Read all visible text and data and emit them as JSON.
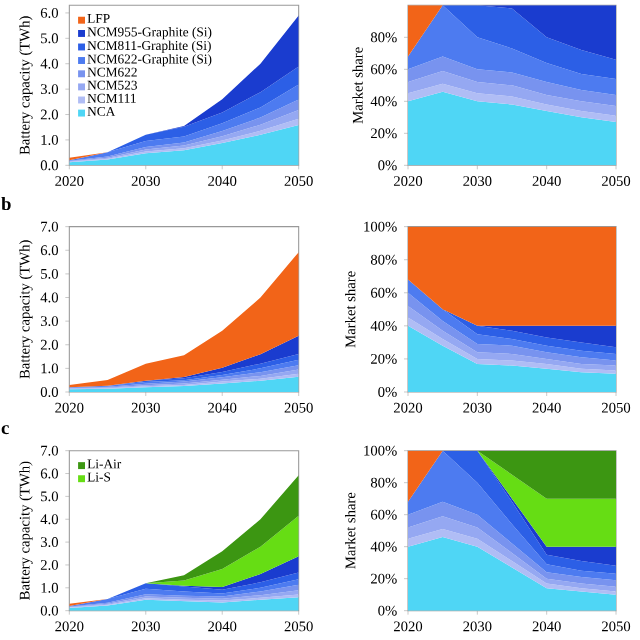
{
  "chart_data": [
    {
      "type": "area",
      "stacked": true,
      "x": [
        2020,
        2025,
        2030,
        2035,
        2040,
        2045,
        2050
      ],
      "xlim": [
        2020,
        2050
      ],
      "xticks": [
        2020,
        2030,
        2040,
        2050
      ],
      "ylim": [
        0,
        6.3
      ],
      "yticks": [
        {
          "value": 0,
          "label": "0.0"
        },
        {
          "value": 1,
          "label": "1.0"
        },
        {
          "value": 2,
          "label": "2.0"
        },
        {
          "value": 3,
          "label": "3.0"
        },
        {
          "value": 4,
          "label": "4.0"
        },
        {
          "value": 5,
          "label": "5.0"
        },
        {
          "value": 6,
          "label": "6.0"
        }
      ],
      "ylabel": "Battery capacity (TWh)",
      "legend": "top left",
      "series": [
        {
          "name": "NCA",
          "color": "#4fd6f5",
          "values": [
            0.12,
            0.23,
            0.48,
            0.59,
            0.88,
            1.2,
            1.59
          ]
        },
        {
          "name": "NCM111",
          "color": "#b0bdf5",
          "values": [
            0.02,
            0.03,
            0.06,
            0.08,
            0.1,
            0.16,
            0.24
          ]
        },
        {
          "name": "NCM523",
          "color": "#95a8f2",
          "values": [
            0.02,
            0.04,
            0.08,
            0.11,
            0.16,
            0.24,
            0.35
          ]
        },
        {
          "name": "NCM622",
          "color": "#7893ef",
          "values": [
            0.02,
            0.05,
            0.1,
            0.12,
            0.21,
            0.28,
            0.41
          ]
        },
        {
          "name": "NCM622-Graphite (Si)",
          "color": "#4d7bf0",
          "values": [
            0.02,
            0.16,
            0.24,
            0.23,
            0.31,
            0.4,
            0.59
          ]
        },
        {
          "name": "NCM811-Graphite (Si)",
          "color": "#2c5fe6",
          "values": [
            null,
            0,
            0.24,
            0.39,
            0.42,
            0.6,
            0.71
          ]
        },
        {
          "name": "NCM955-Graphite (Si)",
          "color": "#1a3ccf",
          "values": [
            null,
            null,
            0,
            0.03,
            0.52,
            1.12,
            2.01
          ]
        },
        {
          "name": "LFP",
          "color": "#f26418",
          "values": [
            0.1,
            0,
            null,
            null,
            null,
            null,
            null
          ]
        }
      ]
    },
    {
      "type": "area",
      "stacked": true,
      "x": [
        2020,
        2025,
        2030,
        2035,
        2040,
        2045,
        2050
      ],
      "xlim": [
        2020,
        2050
      ],
      "xticks": [
        2020,
        2030,
        2040,
        2050
      ],
      "ylim": [
        0,
        100
      ],
      "yticks": [
        {
          "value": 0,
          "label": "0%"
        },
        {
          "value": 20,
          "label": "20%"
        },
        {
          "value": 40,
          "label": "40%"
        },
        {
          "value": 60,
          "label": "60%"
        },
        {
          "value": 80,
          "label": "80%"
        }
      ],
      "ylabel": "Market share",
      "series": [
        {
          "color": "#4fd6f5",
          "values": [
            40,
            46,
            40,
            38,
            34,
            30,
            27
          ]
        },
        {
          "color": "#b0bdf5",
          "values": [
            5,
            5,
            5,
            5,
            4,
            4,
            4
          ]
        },
        {
          "color": "#95a8f2",
          "values": [
            7,
            8,
            7,
            7,
            6,
            6,
            6
          ]
        },
        {
          "color": "#7893ef",
          "values": [
            8,
            9,
            8,
            8,
            8,
            7,
            7
          ]
        },
        {
          "color": "#4d7bf0",
          "values": [
            8,
            32,
            20,
            15,
            12,
            10,
            10
          ]
        },
        {
          "color": "#2c5fe6",
          "values": [
            null,
            0,
            20,
            25,
            16,
            15,
            12
          ]
        },
        {
          "color": "#1a3ccf",
          "values": [
            null,
            null,
            0,
            2,
            20,
            28,
            34
          ]
        },
        {
          "color": "#f26418",
          "values": [
            32,
            0,
            null,
            null,
            null,
            null,
            null
          ]
        }
      ]
    },
    {
      "type": "area",
      "stacked": true,
      "title": "b",
      "x": [
        2020,
        2025,
        2030,
        2035,
        2040,
        2045,
        2050
      ],
      "xlim": [
        2020,
        2050
      ],
      "xticks": [
        2020,
        2030,
        2040,
        2050
      ],
      "ylim": [
        0,
        7
      ],
      "yticks": [
        {
          "value": 0,
          "label": "0.0"
        },
        {
          "value": 1,
          "label": "1.0"
        },
        {
          "value": 2,
          "label": "2.0"
        },
        {
          "value": 3,
          "label": "3.0"
        },
        {
          "value": 4,
          "label": "4.0"
        },
        {
          "value": 5,
          "label": "5.0"
        },
        {
          "value": 6,
          "label": "6.0"
        },
        {
          "value": 7,
          "label": "7.0"
        }
      ],
      "ylabel": "Battery capacity (TWh)",
      "series": [
        {
          "color": "#4fd6f5",
          "values": [
            0.12,
            0.14,
            0.2,
            0.25,
            0.36,
            0.48,
            0.65
          ]
        },
        {
          "color": "#b0bdf5",
          "values": [
            0.02,
            0.02,
            0.04,
            0.05,
            0.08,
            0.08,
            0.12
          ]
        },
        {
          "color": "#95a8f2",
          "values": [
            0.02,
            0.03,
            0.05,
            0.06,
            0.08,
            0.12,
            0.18
          ]
        },
        {
          "color": "#7893ef",
          "values": [
            0.02,
            0.03,
            0.06,
            0.08,
            0.1,
            0.16,
            0.18
          ]
        },
        {
          "color": "#4d7bf0",
          "values": [
            0.02,
            0.04,
            0.07,
            0.06,
            0.1,
            0.16,
            0.24
          ]
        },
        {
          "color": "#2c5fe6",
          "values": [
            null,
            0,
            0.06,
            0.08,
            0.13,
            0.2,
            0.24
          ]
        },
        {
          "color": "#1a3ccf",
          "values": [
            null,
            null,
            0,
            0.05,
            0.18,
            0.4,
            0.77
          ]
        },
        {
          "color": "#f26418",
          "values": [
            0.1,
            0.25,
            0.72,
            0.93,
            1.56,
            2.4,
            3.54
          ]
        }
      ]
    },
    {
      "type": "area",
      "stacked": true,
      "x": [
        2020,
        2025,
        2030,
        2035,
        2040,
        2045,
        2050
      ],
      "xlim": [
        2020,
        2050
      ],
      "xticks": [
        2020,
        2030,
        2040,
        2050
      ],
      "ylim": [
        0,
        100
      ],
      "yticks": [
        {
          "value": 0,
          "label": "0%"
        },
        {
          "value": 20,
          "label": "20%"
        },
        {
          "value": 40,
          "label": "40%"
        },
        {
          "value": 60,
          "label": "60%"
        },
        {
          "value": 80,
          "label": "80%"
        },
        {
          "value": 100,
          "label": "100%"
        }
      ],
      "ylabel": "Market share",
      "series": [
        {
          "color": "#4fd6f5",
          "values": [
            40,
            28,
            17,
            16,
            14,
            12,
            11
          ]
        },
        {
          "color": "#b0bdf5",
          "values": [
            5,
            4,
            3,
            3,
            3,
            2,
            2
          ]
        },
        {
          "color": "#95a8f2",
          "values": [
            7,
            5,
            4,
            4,
            3,
            3,
            3
          ]
        },
        {
          "color": "#7893ef",
          "values": [
            8,
            6,
            5,
            5,
            4,
            4,
            3
          ]
        },
        {
          "color": "#4d7bf0",
          "values": [
            8,
            7,
            6,
            4,
            4,
            4,
            4
          ]
        },
        {
          "color": "#2c5fe6",
          "values": [
            null,
            0,
            5,
            5,
            5,
            5,
            4
          ]
        },
        {
          "color": "#1a3ccf",
          "values": [
            null,
            null,
            0,
            3,
            7,
            10,
            13
          ]
        },
        {
          "color": "#f26418",
          "values": [
            32,
            50,
            60,
            60,
            60,
            60,
            60
          ]
        }
      ]
    },
    {
      "type": "area",
      "stacked": true,
      "title": "c",
      "x": [
        2020,
        2025,
        2030,
        2035,
        2040,
        2045,
        2050
      ],
      "xlim": [
        2020,
        2050
      ],
      "xticks": [
        2020,
        2030,
        2040,
        2050
      ],
      "ylim": [
        0,
        7
      ],
      "yticks": [
        {
          "value": 0,
          "label": "0.0"
        },
        {
          "value": 1,
          "label": "1.0"
        },
        {
          "value": 2,
          "label": "2.0"
        },
        {
          "value": 3,
          "label": "3.0"
        },
        {
          "value": 4,
          "label": "4.0"
        },
        {
          "value": 5,
          "label": "5.0"
        },
        {
          "value": 6,
          "label": "6.0"
        },
        {
          "value": 7,
          "label": "7.0"
        }
      ],
      "ylabel": "Battery capacity (TWh)",
      "legend": "top left",
      "series": [
        {
          "color": "#4fd6f5",
          "values": [
            0.12,
            0.23,
            0.48,
            0.42,
            0.36,
            0.48,
            0.59
          ]
        },
        {
          "color": "#b0bdf5",
          "values": [
            0.02,
            0.03,
            0.06,
            0.06,
            0.08,
            0.08,
            0.12
          ]
        },
        {
          "color": "#95a8f2",
          "values": [
            0.02,
            0.04,
            0.08,
            0.08,
            0.08,
            0.12,
            0.18
          ]
        },
        {
          "color": "#7893ef",
          "values": [
            0.02,
            0.05,
            0.1,
            0.09,
            0.1,
            0.16,
            0.24
          ]
        },
        {
          "color": "#4d7bf0",
          "values": [
            0.02,
            0.16,
            0.24,
            0.19,
            0.13,
            0.16,
            0.24
          ]
        },
        {
          "color": "#2c5fe6",
          "values": [
            null,
            0,
            0.24,
            0.22,
            0.16,
            0.24,
            0.3
          ]
        },
        {
          "color": "#1a3ccf",
          "values": [
            null,
            null,
            0,
            0.03,
            0.13,
            0.36,
            0.71
          ]
        },
        {
          "color": "#f26418",
          "values": [
            0.1,
            0,
            null,
            null,
            null,
            null,
            null
          ]
        },
        {
          "name": "Li-S",
          "color": "#66dd14",
          "values": [
            null,
            null,
            0,
            0.23,
            0.78,
            1.2,
            1.77
          ]
        },
        {
          "name": "Li-Air",
          "color": "#3c9612",
          "values": [
            null,
            null,
            0,
            0.23,
            0.78,
            1.2,
            1.77
          ]
        }
      ]
    },
    {
      "type": "area",
      "stacked": true,
      "x": [
        2020,
        2025,
        2030,
        2035,
        2040,
        2045,
        2050
      ],
      "xlim": [
        2020,
        2050
      ],
      "xticks": [
        2020,
        2030,
        2040,
        2050
      ],
      "ylim": [
        0,
        100
      ],
      "yticks": [
        {
          "value": 0,
          "label": "0%"
        },
        {
          "value": 20,
          "label": "20%"
        },
        {
          "value": 40,
          "label": "40%"
        },
        {
          "value": 60,
          "label": "60%"
        },
        {
          "value": 80,
          "label": "80%"
        },
        {
          "value": 100,
          "label": "100%"
        }
      ],
      "ylabel": "Market share",
      "series": [
        {
          "color": "#4fd6f5",
          "values": [
            40,
            46,
            40,
            27,
            14,
            12,
            10
          ]
        },
        {
          "color": "#b0bdf5",
          "values": [
            5,
            5,
            5,
            4,
            3,
            2,
            2
          ]
        },
        {
          "color": "#95a8f2",
          "values": [
            7,
            8,
            7,
            5,
            3,
            3,
            3
          ]
        },
        {
          "color": "#7893ef",
          "values": [
            8,
            9,
            8,
            6,
            4,
            4,
            4
          ]
        },
        {
          "color": "#4d7bf0",
          "values": [
            8,
            32,
            20,
            12,
            5,
            4,
            4
          ]
        },
        {
          "color": "#2c5fe6",
          "values": [
            null,
            0,
            20,
            14,
            6,
            6,
            5
          ]
        },
        {
          "color": "#1a3ccf",
          "values": [
            null,
            null,
            0,
            2,
            5,
            9,
            12
          ]
        },
        {
          "color": "#f26418",
          "values": [
            32,
            0,
            null,
            null,
            null,
            null,
            null
          ]
        },
        {
          "color": "#66dd14",
          "values": [
            null,
            null,
            0,
            15,
            30,
            30,
            30
          ]
        },
        {
          "color": "#3c9612",
          "values": [
            null,
            null,
            0,
            15,
            30,
            30,
            30
          ]
        }
      ]
    }
  ]
}
